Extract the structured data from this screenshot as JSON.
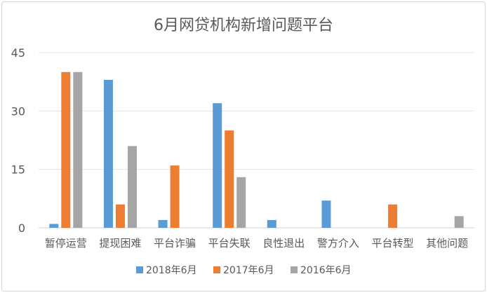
{
  "chart_data": {
    "type": "bar",
    "title": "6月网贷机构新增问题平台",
    "xlabel": "",
    "ylabel": "",
    "ylim": [
      0,
      45
    ],
    "yticks": [
      "0",
      "15",
      "30",
      "45"
    ],
    "grid": true,
    "legend_position": "bottom",
    "categories": [
      "暂停运营",
      "提现困难",
      "平台诈骗",
      "平台失联",
      "良性退出",
      "警方介入",
      "平台转型",
      "其他问题"
    ],
    "series": [
      {
        "name": "2018年6月",
        "color": "#5b9bd5",
        "values": [
          1,
          38,
          2,
          32,
          2,
          7,
          0,
          0
        ]
      },
      {
        "name": "2017年6月",
        "color": "#ed7d31",
        "values": [
          40,
          6,
          16,
          25,
          0,
          0,
          6,
          0
        ]
      },
      {
        "name": "2016年6月",
        "color": "#a5a5a5",
        "values": [
          40,
          21,
          0,
          13,
          0,
          0,
          0,
          3
        ]
      }
    ]
  }
}
